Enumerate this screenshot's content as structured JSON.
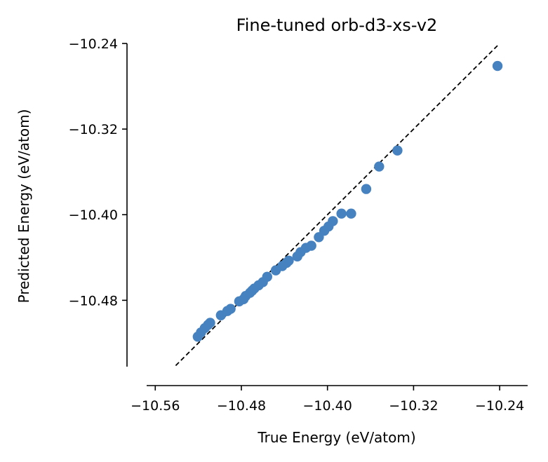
{
  "chart_data": {
    "type": "scatter",
    "title": "Fine-tuned orb-d3-xs-v2",
    "xlabel": "True Energy (eV/atom)",
    "ylabel": "Predicted Energy (eV/atom)",
    "xlim": [
      -10.568,
      -10.214
    ],
    "ylim": [
      -10.542,
      -10.24
    ],
    "xticks": [
      -10.56,
      -10.48,
      -10.4,
      -10.32,
      -10.24
    ],
    "xtick_labels": [
      "−10.56",
      "−10.48",
      "−10.40",
      "−10.32",
      "−10.24"
    ],
    "yticks": [
      -10.48,
      -10.4,
      -10.32,
      -10.24
    ],
    "ytick_labels": [
      "−10.48",
      "−10.40",
      "−10.32",
      "−10.24"
    ],
    "grid": false,
    "reference_line": {
      "x": [
        -10.541,
        -10.241
      ],
      "y": [
        -10.541,
        -10.241
      ]
    },
    "colors": {
      "points": "#4682c0",
      "reference_line": "#000000"
    },
    "x": [
      -10.5205,
      -10.5175,
      -10.514,
      -10.511,
      -10.509,
      -10.499,
      -10.493,
      -10.49,
      -10.482,
      -10.478,
      -10.476,
      -10.472,
      -10.47,
      -10.468,
      -10.464,
      -10.46,
      -10.456,
      -10.448,
      -10.442,
      -10.438,
      -10.436,
      -10.428,
      -10.425,
      -10.42,
      -10.415,
      -10.408,
      -10.403,
      -10.399,
      -10.395,
      -10.387,
      -10.378,
      -10.364,
      -10.352,
      -10.335,
      -10.242
    ],
    "y": [
      -10.514,
      -10.51,
      -10.506,
      -10.503,
      -10.501,
      -10.494,
      -10.49,
      -10.488,
      -10.481,
      -10.479,
      -10.476,
      -10.473,
      -10.471,
      -10.469,
      -10.466,
      -10.463,
      -10.458,
      -10.452,
      -10.448,
      -10.445,
      -10.443,
      -10.439,
      -10.435,
      -10.431,
      -10.429,
      -10.421,
      -10.415,
      -10.411,
      -10.406,
      -10.399,
      -10.399,
      -10.376,
      -10.355,
      -10.34,
      -10.261
    ]
  }
}
